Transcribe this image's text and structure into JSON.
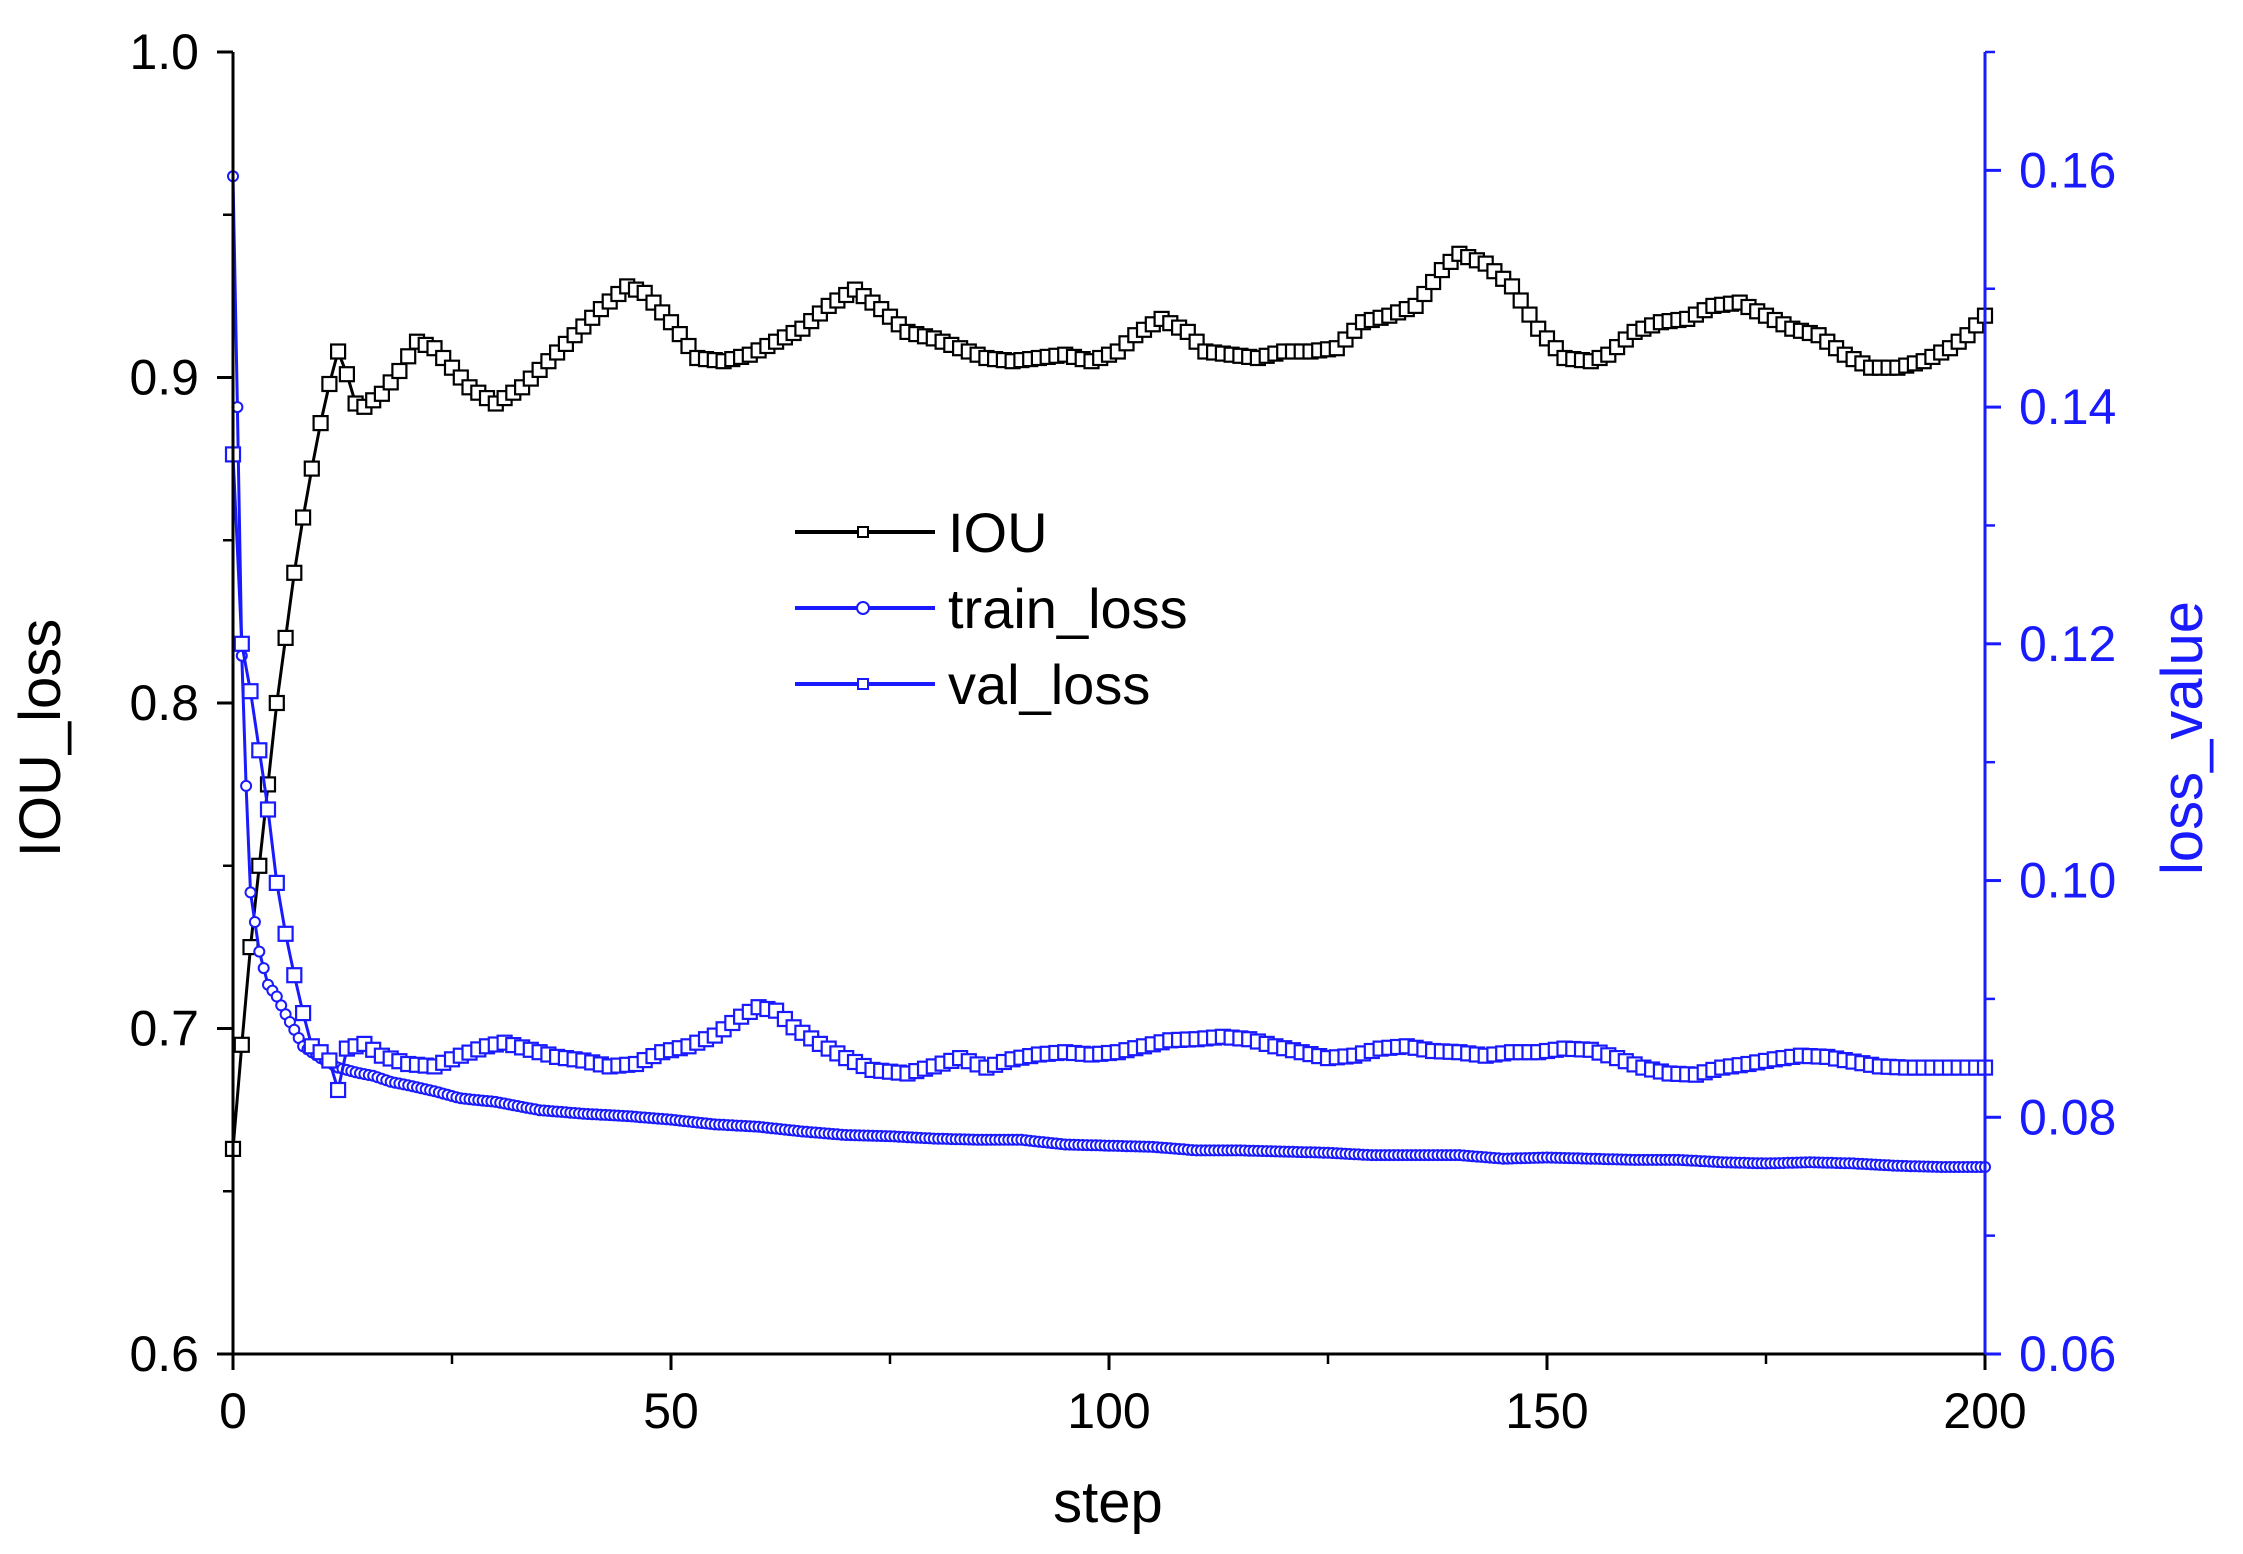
{
  "chart_data": {
    "type": "line",
    "title": "",
    "xlabel": "step",
    "ylabel_left": "IOU_loss",
    "ylabel_right": "loss_value",
    "xlim": [
      0,
      200
    ],
    "ylim_left": [
      0.6,
      1.0
    ],
    "ylim_right": [
      0.06,
      0.17
    ],
    "x_ticks": [
      0,
      50,
      100,
      150,
      200
    ],
    "x_tick_labels": [
      "0",
      "50",
      "100",
      "150",
      "200"
    ],
    "y_left_ticks": [
      0.6,
      0.7,
      0.8,
      0.9,
      1.0
    ],
    "y_left_tick_labels": [
      "0.6",
      "0.7",
      "0.8",
      "0.9",
      "1.0"
    ],
    "y_right_ticks": [
      0.06,
      0.08,
      0.1,
      0.12,
      0.14,
      0.16
    ],
    "y_right_tick_labels": [
      "0.06",
      "0.08",
      "0.10",
      "0.12",
      "0.14",
      "0.16"
    ],
    "grid": false,
    "legend_position": "center-left",
    "colors": {
      "iou": "#000000",
      "loss": "#1a1aff",
      "right_axis": "#1a1aff"
    },
    "series": [
      {
        "name": "IOU",
        "axis": "left",
        "marker": "square",
        "anchors": [
          [
            0,
            0.663
          ],
          [
            1,
            0.695
          ],
          [
            2,
            0.725
          ],
          [
            3,
            0.75
          ],
          [
            4,
            0.775
          ],
          [
            5,
            0.8
          ],
          [
            6,
            0.82
          ],
          [
            7,
            0.84
          ],
          [
            8,
            0.857
          ],
          [
            9,
            0.872
          ],
          [
            10,
            0.886
          ],
          [
            11,
            0.898
          ],
          [
            12,
            0.908
          ],
          [
            13,
            0.901
          ],
          [
            14,
            0.892
          ],
          [
            15,
            0.891
          ],
          [
            17,
            0.895
          ],
          [
            19,
            0.902
          ],
          [
            21,
            0.911
          ],
          [
            23,
            0.909
          ],
          [
            25,
            0.903
          ],
          [
            27,
            0.897
          ],
          [
            30,
            0.892
          ],
          [
            33,
            0.897
          ],
          [
            36,
            0.905
          ],
          [
            39,
            0.913
          ],
          [
            42,
            0.921
          ],
          [
            45,
            0.928
          ],
          [
            47,
            0.926
          ],
          [
            50,
            0.917
          ],
          [
            53,
            0.906
          ],
          [
            56,
            0.905
          ],
          [
            59,
            0.907
          ],
          [
            62,
            0.911
          ],
          [
            65,
            0.915
          ],
          [
            68,
            0.922
          ],
          [
            71,
            0.927
          ],
          [
            74,
            0.921
          ],
          [
            77,
            0.914
          ],
          [
            80,
            0.912
          ],
          [
            83,
            0.909
          ],
          [
            86,
            0.906
          ],
          [
            89,
            0.905
          ],
          [
            92,
            0.906
          ],
          [
            95,
            0.907
          ],
          [
            98,
            0.905
          ],
          [
            101,
            0.908
          ],
          [
            103,
            0.913
          ],
          [
            106,
            0.918
          ],
          [
            109,
            0.914
          ],
          [
            111,
            0.908
          ],
          [
            114,
            0.907
          ],
          [
            117,
            0.906
          ],
          [
            120,
            0.908
          ],
          [
            123,
            0.908
          ],
          [
            126,
            0.909
          ],
          [
            129,
            0.917
          ],
          [
            132,
            0.919
          ],
          [
            135,
            0.922
          ],
          [
            138,
            0.933
          ],
          [
            140,
            0.938
          ],
          [
            143,
            0.935
          ],
          [
            146,
            0.928
          ],
          [
            149,
            0.915
          ],
          [
            152,
            0.906
          ],
          [
            155,
            0.905
          ],
          [
            157,
            0.907
          ],
          [
            160,
            0.914
          ],
          [
            163,
            0.917
          ],
          [
            166,
            0.918
          ],
          [
            169,
            0.922
          ],
          [
            172,
            0.923
          ],
          [
            175,
            0.919
          ],
          [
            178,
            0.915
          ],
          [
            181,
            0.913
          ],
          [
            184,
            0.907
          ],
          [
            187,
            0.903
          ],
          [
            190,
            0.903
          ],
          [
            193,
            0.905
          ],
          [
            196,
            0.909
          ],
          [
            198,
            0.913
          ],
          [
            200,
            0.919
          ]
        ]
      },
      {
        "name": "train_loss",
        "axis": "right",
        "marker": "circle",
        "anchors": [
          [
            0,
            0.1595
          ],
          [
            0.5,
            0.14
          ],
          [
            1,
            0.119
          ],
          [
            1.5,
            0.108
          ],
          [
            2,
            0.099
          ],
          [
            3,
            0.094
          ],
          [
            4,
            0.0912
          ],
          [
            5,
            0.0902
          ],
          [
            6,
            0.0887
          ],
          [
            7,
            0.0874
          ],
          [
            8,
            0.086
          ],
          [
            10,
            0.085
          ],
          [
            12,
            0.0842
          ],
          [
            14,
            0.0838
          ],
          [
            16,
            0.0835
          ],
          [
            18,
            0.083
          ],
          [
            20,
            0.0827
          ],
          [
            23,
            0.0822
          ],
          [
            26,
            0.0816
          ],
          [
            30,
            0.0813
          ],
          [
            35,
            0.0806
          ],
          [
            40,
            0.0803
          ],
          [
            45,
            0.0801
          ],
          [
            50,
            0.0798
          ],
          [
            55,
            0.0794
          ],
          [
            60,
            0.0792
          ],
          [
            65,
            0.0788
          ],
          [
            70,
            0.0785
          ],
          [
            75,
            0.0784
          ],
          [
            80,
            0.0782
          ],
          [
            85,
            0.0781
          ],
          [
            90,
            0.0781
          ],
          [
            95,
            0.0777
          ],
          [
            100,
            0.0776
          ],
          [
            105,
            0.0775
          ],
          [
            110,
            0.0772
          ],
          [
            115,
            0.0772
          ],
          [
            120,
            0.0771
          ],
          [
            125,
            0.077
          ],
          [
            130,
            0.0768
          ],
          [
            135,
            0.0768
          ],
          [
            140,
            0.0768
          ],
          [
            145,
            0.0765
          ],
          [
            150,
            0.0766
          ],
          [
            155,
            0.0765
          ],
          [
            160,
            0.0764
          ],
          [
            165,
            0.0764
          ],
          [
            170,
            0.0762
          ],
          [
            175,
            0.0761
          ],
          [
            180,
            0.0762
          ],
          [
            185,
            0.0761
          ],
          [
            190,
            0.0759
          ],
          [
            195,
            0.0758
          ],
          [
            200,
            0.0758
          ]
        ]
      },
      {
        "name": "val_loss",
        "axis": "right",
        "marker": "square",
        "anchors": [
          [
            0,
            0.136
          ],
          [
            0.5,
            0.128
          ],
          [
            1,
            0.12
          ],
          [
            2,
            0.116
          ],
          [
            3,
            0.111
          ],
          [
            4,
            0.106
          ],
          [
            5,
            0.0998
          ],
          [
            6,
            0.0955
          ],
          [
            7,
            0.092
          ],
          [
            8,
            0.0888
          ],
          [
            9,
            0.086
          ],
          [
            10,
            0.0855
          ],
          [
            11,
            0.0848
          ],
          [
            12,
            0.0823
          ],
          [
            13,
            0.0858
          ],
          [
            15,
            0.0862
          ],
          [
            17,
            0.0852
          ],
          [
            20,
            0.0845
          ],
          [
            23,
            0.0843
          ],
          [
            26,
            0.0852
          ],
          [
            29,
            0.086
          ],
          [
            31,
            0.0863
          ],
          [
            34,
            0.0857
          ],
          [
            37,
            0.0851
          ],
          [
            40,
            0.0848
          ],
          [
            43,
            0.0843
          ],
          [
            46,
            0.0845
          ],
          [
            49,
            0.0855
          ],
          [
            52,
            0.086
          ],
          [
            55,
            0.0869
          ],
          [
            58,
            0.0885
          ],
          [
            60,
            0.0893
          ],
          [
            62,
            0.089
          ],
          [
            64,
            0.0876
          ],
          [
            67,
            0.0862
          ],
          [
            70,
            0.085
          ],
          [
            73,
            0.084
          ],
          [
            77,
            0.0837
          ],
          [
            80,
            0.0843
          ],
          [
            83,
            0.085
          ],
          [
            86,
            0.0842
          ],
          [
            89,
            0.0849
          ],
          [
            92,
            0.0853
          ],
          [
            95,
            0.0855
          ],
          [
            98,
            0.0853
          ],
          [
            101,
            0.0855
          ],
          [
            104,
            0.086
          ],
          [
            107,
            0.0865
          ],
          [
            110,
            0.0866
          ],
          [
            113,
            0.0868
          ],
          [
            116,
            0.0866
          ],
          [
            119,
            0.086
          ],
          [
            122,
            0.0855
          ],
          [
            125,
            0.085
          ],
          [
            128,
            0.0852
          ],
          [
            131,
            0.0858
          ],
          [
            134,
            0.086
          ],
          [
            137,
            0.0856
          ],
          [
            140,
            0.0855
          ],
          [
            143,
            0.0852
          ],
          [
            146,
            0.0855
          ],
          [
            149,
            0.0855
          ],
          [
            152,
            0.0858
          ],
          [
            155,
            0.0857
          ],
          [
            158,
            0.085
          ],
          [
            161,
            0.0842
          ],
          [
            164,
            0.0837
          ],
          [
            167,
            0.0836
          ],
          [
            170,
            0.0842
          ],
          [
            173,
            0.0845
          ],
          [
            176,
            0.0849
          ],
          [
            179,
            0.0852
          ],
          [
            182,
            0.0851
          ],
          [
            185,
            0.0847
          ],
          [
            188,
            0.0843
          ],
          [
            191,
            0.0842
          ],
          [
            194,
            0.0842
          ],
          [
            197,
            0.0842
          ],
          [
            200,
            0.0842
          ]
        ]
      }
    ]
  }
}
